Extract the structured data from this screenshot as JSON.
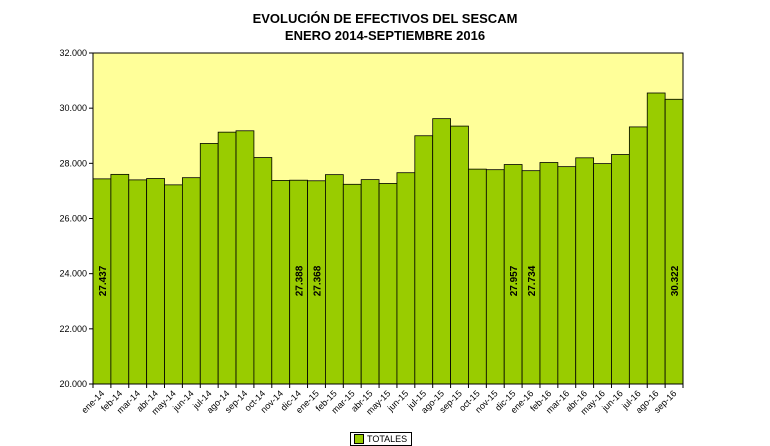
{
  "chart_data": {
    "type": "bar",
    "title": "EVOLUCIÓN DE EFECTIVOS DEL SESCAM",
    "subtitle": "ENERO 2014-SEPTIEMBRE 2016",
    "categories": [
      "ene-14",
      "feb-14",
      "mar-14",
      "abr-14",
      "may-14",
      "jun-14",
      "jul-14",
      "ago-14",
      "sep-14",
      "oct-14",
      "nov-14",
      "dic-14",
      "ene-15",
      "feb-15",
      "mar-15",
      "abr-15",
      "may-15",
      "jun-15",
      "jul-15",
      "ago-15",
      "sep-15",
      "oct-15",
      "nov-15",
      "dic-15",
      "ene-16",
      "feb-16",
      "mar-16",
      "abr-16",
      "may-16",
      "jun-16",
      "jul-16",
      "ago-16",
      "sep-16"
    ],
    "series": [
      {
        "name": "TOTALES",
        "values": [
          27437,
          27600,
          27400,
          27450,
          27220,
          27480,
          28720,
          29130,
          29180,
          28210,
          27380,
          27388,
          27368,
          27590,
          27240,
          27410,
          27270,
          27660,
          29000,
          29620,
          29350,
          27790,
          27770,
          27957,
          27734,
          28030,
          27880,
          28200,
          27990,
          28320,
          29320,
          30550,
          30322
        ]
      }
    ],
    "data_labels": [
      {
        "index": 0,
        "text": "27.437"
      },
      {
        "index": 11,
        "text": "27.388"
      },
      {
        "index": 12,
        "text": "27.368"
      },
      {
        "index": 23,
        "text": "27.957"
      },
      {
        "index": 24,
        "text": "27.734"
      },
      {
        "index": 32,
        "text": "30.322"
      }
    ],
    "ylim": [
      20000,
      32000
    ],
    "yticks": [
      20000,
      22000,
      24000,
      26000,
      28000,
      30000,
      32000
    ],
    "ytick_labels": [
      "20.000",
      "22.000",
      "24.000",
      "26.000",
      "28.000",
      "30.000",
      "32.000"
    ],
    "grid": false,
    "legend_position": "bottom-center",
    "colors": {
      "bar": "#99cc00",
      "plot_background": "#ffff99",
      "outline": "#000000"
    }
  }
}
